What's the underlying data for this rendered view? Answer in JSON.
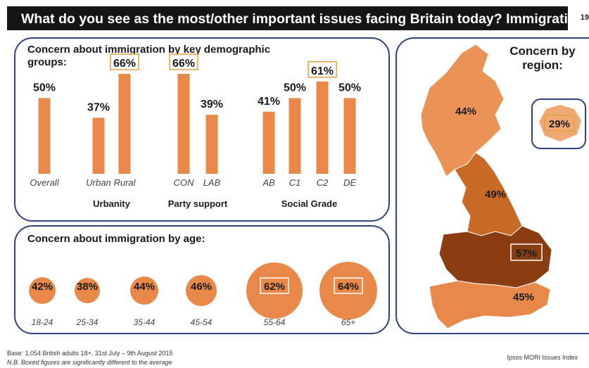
{
  "header": {
    "title": "What do you see as the most/other important issues facing Britain today?  Immigration",
    "page_number": "19"
  },
  "colors": {
    "bar": "#e8894a",
    "title_bar": "#151515",
    "panel_border": "#2f4380",
    "box_border": "#e0a23a",
    "region_light": "#eb9257",
    "region_mid": "#c86a25",
    "region_dark": "#8a3d10",
    "region_south": "#e8894a",
    "london": "#f0a874"
  },
  "chart_data": [
    {
      "type": "bar",
      "title": "Concern about immigration by key demographic groups:",
      "categories": [
        "Overall",
        "Urban",
        "Rural",
        "CON",
        "LAB",
        "AB",
        "C1",
        "C2",
        "DE"
      ],
      "values": [
        50,
        37,
        66,
        66,
        39,
        41,
        50,
        61,
        50
      ],
      "labels": [
        "50%",
        "37%",
        "66%",
        "66%",
        "39%",
        "41%",
        "50%",
        "61%",
        "50%"
      ],
      "boxed": [
        false,
        false,
        true,
        true,
        false,
        false,
        false,
        true,
        false
      ],
      "groups": [
        {
          "name": "Urbanity",
          "categories": [
            "Urban",
            "Rural"
          ]
        },
        {
          "name": "Party support",
          "categories": [
            "CON",
            "LAB"
          ]
        },
        {
          "name": "Social Grade",
          "categories": [
            "AB",
            "C1",
            "C2",
            "DE"
          ]
        }
      ],
      "ylim": [
        0,
        66
      ]
    },
    {
      "type": "bubble",
      "title": "Concern about immigration by age:",
      "categories": [
        "18-24",
        "25-34",
        "35-44",
        "45-54",
        "55-64",
        "65+"
      ],
      "values": [
        42,
        38,
        44,
        46,
        62,
        64
      ],
      "labels": [
        "42%",
        "38%",
        "44%",
        "46%",
        "62%",
        "64%"
      ],
      "boxed": [
        false,
        false,
        false,
        false,
        true,
        true
      ]
    },
    {
      "type": "map",
      "title": "Concern by region:",
      "regions": [
        {
          "name": "Scotland",
          "value": 44,
          "label": "44%",
          "boxed": false
        },
        {
          "name": "North",
          "value": 49,
          "label": "49%",
          "boxed": false
        },
        {
          "name": "Midlands",
          "value": 57,
          "label": "57%",
          "boxed": true
        },
        {
          "name": "South",
          "value": 45,
          "label": "45%",
          "boxed": false
        },
        {
          "name": "London",
          "value": 29,
          "label": "29%",
          "boxed": true
        }
      ]
    }
  ],
  "footer": {
    "base": "Base: 1,054 British adults 18+, 31st July – 9th August 2015",
    "note": "N.B. Boxed figures are significantly different to the average",
    "source": "Ipsos MORI Issues Index"
  }
}
